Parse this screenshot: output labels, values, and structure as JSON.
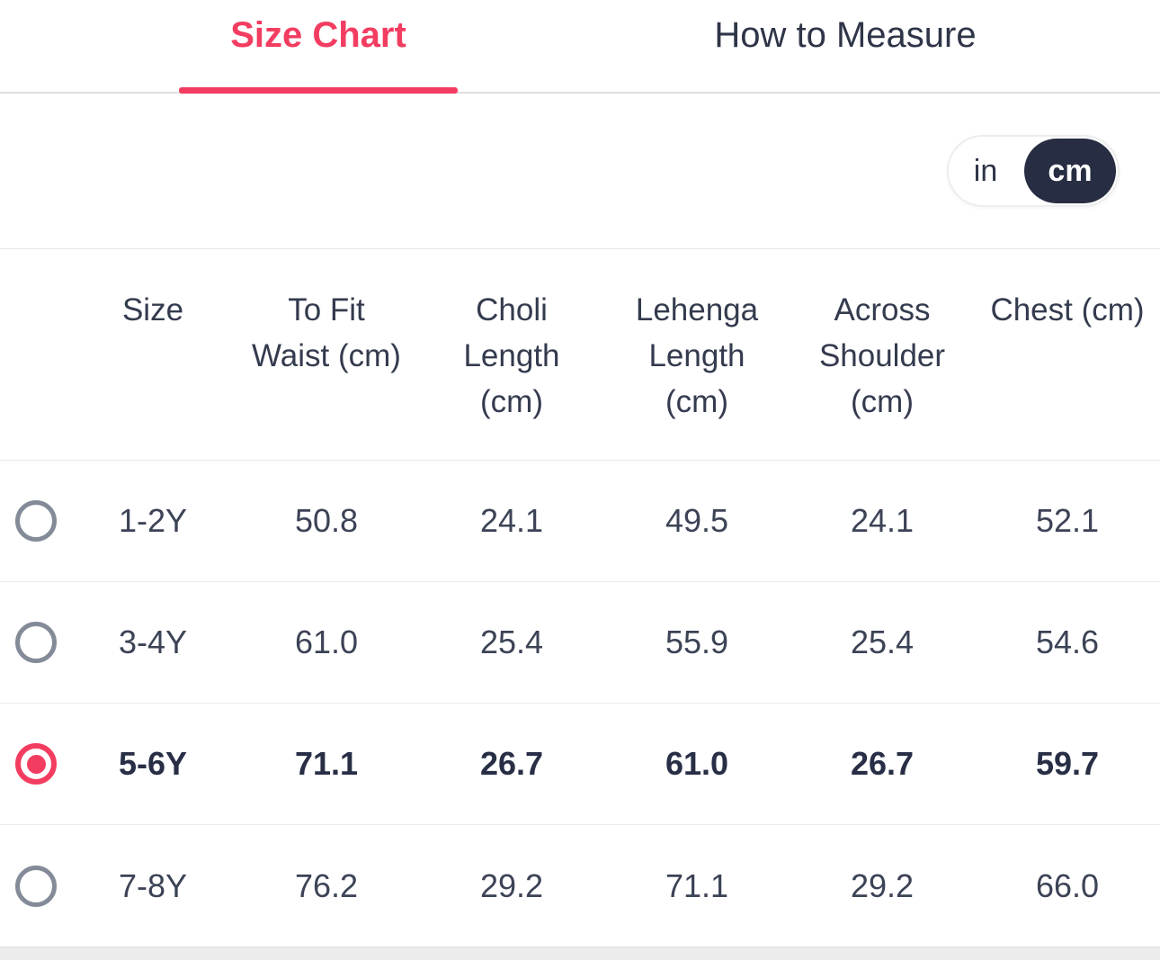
{
  "tabs": [
    {
      "label": "Size Chart",
      "active": true
    },
    {
      "label": "How to Measure",
      "active": false
    }
  ],
  "unit_toggle": {
    "options": [
      "in",
      "cm"
    ],
    "selected": "cm"
  },
  "table": {
    "columns": [
      "Size",
      "To Fit\nWaist (cm)",
      "Choli\nLength\n(cm)",
      "Lehenga\nLength\n(cm)",
      "Across\nShoulder\n(cm)",
      "Chest (cm)"
    ],
    "row_keys": [
      "size",
      "to_fit_waist",
      "choli_length",
      "lehenga_length",
      "across_shoulder",
      "chest"
    ],
    "rows": [
      {
        "size": "1-2Y",
        "to_fit_waist": "50.8",
        "choli_length": "24.1",
        "lehenga_length": "49.5",
        "across_shoulder": "24.1",
        "chest": "52.1",
        "selected": false
      },
      {
        "size": "3-4Y",
        "to_fit_waist": "61.0",
        "choli_length": "25.4",
        "lehenga_length": "55.9",
        "across_shoulder": "25.4",
        "chest": "54.6",
        "selected": false
      },
      {
        "size": "5-6Y",
        "to_fit_waist": "71.1",
        "choli_length": "26.7",
        "lehenga_length": "61.0",
        "across_shoulder": "26.7",
        "chest": "59.7",
        "selected": true
      },
      {
        "size": "7-8Y",
        "to_fit_waist": "76.2",
        "choli_length": "29.2",
        "lehenga_length": "71.1",
        "across_shoulder": "29.2",
        "chest": "66.0",
        "selected": false
      }
    ]
  },
  "colors": {
    "accent_pink": "#f23d61",
    "dark_navy": "#272d42",
    "text": "#3c4356",
    "radio_gray": "#848b98"
  }
}
